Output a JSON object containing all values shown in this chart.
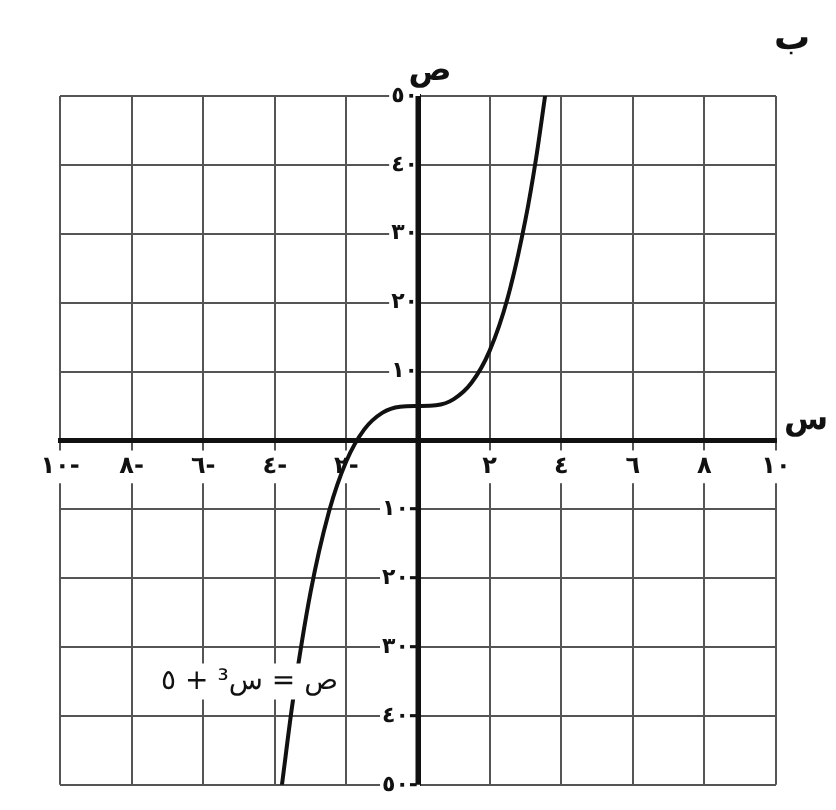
{
  "chart_data": {
    "type": "line",
    "title": "ب",
    "xlabel": "س",
    "ylabel": "ص",
    "annotations": [
      "ص = س³ + ٥"
    ],
    "x": [
      -3.8,
      -3.5,
      -3,
      -2.5,
      -2,
      -1.5,
      -1,
      -0.5,
      0,
      0.5,
      1,
      1.5,
      2,
      2.5,
      3,
      3.3,
      3.55
    ],
    "series": [
      {
        "color": "#111111",
        "values": [
          -50,
          -38,
          -22,
          -10.6,
          -3,
          1.6,
          4,
          4.9,
          5,
          5.1,
          6,
          8.4,
          13,
          20.6,
          32,
          41,
          50
        ]
      }
    ],
    "xlim": [
      -10,
      10
    ],
    "xticks": [
      {
        "value": -10,
        "label": "١٠-"
      },
      {
        "value": -8,
        "label": "٨-"
      },
      {
        "value": -6,
        "label": "٦-"
      },
      {
        "value": -4,
        "label": "٤-"
      },
      {
        "value": -2,
        "label": "٢-"
      },
      {
        "value": 0,
        "label": null
      },
      {
        "value": 2,
        "label": "٢"
      },
      {
        "value": 4,
        "label": "٤"
      },
      {
        "value": 6,
        "label": "٦"
      },
      {
        "value": 8,
        "label": "٨"
      },
      {
        "value": 10,
        "label": "١٠"
      }
    ],
    "ylim": [
      -50,
      50
    ],
    "yticks": [
      {
        "value": -50,
        "label": "٥٠-"
      },
      {
        "value": -40,
        "label": "٤٠-"
      },
      {
        "value": -30,
        "label": "٣٠-"
      },
      {
        "value": -20,
        "label": "٢٠-"
      },
      {
        "value": -10,
        "label": "١٠-"
      },
      {
        "value": 0,
        "label": null
      },
      {
        "value": 10,
        "label": "١٠"
      },
      {
        "value": 20,
        "label": "٢٠"
      },
      {
        "value": 30,
        "label": "٣٠"
      },
      {
        "value": 40,
        "label": "٤٠"
      },
      {
        "value": 50,
        "label": "٥٠"
      }
    ],
    "grid": true,
    "legend": false,
    "marker": "none",
    "line_style": "solid"
  }
}
